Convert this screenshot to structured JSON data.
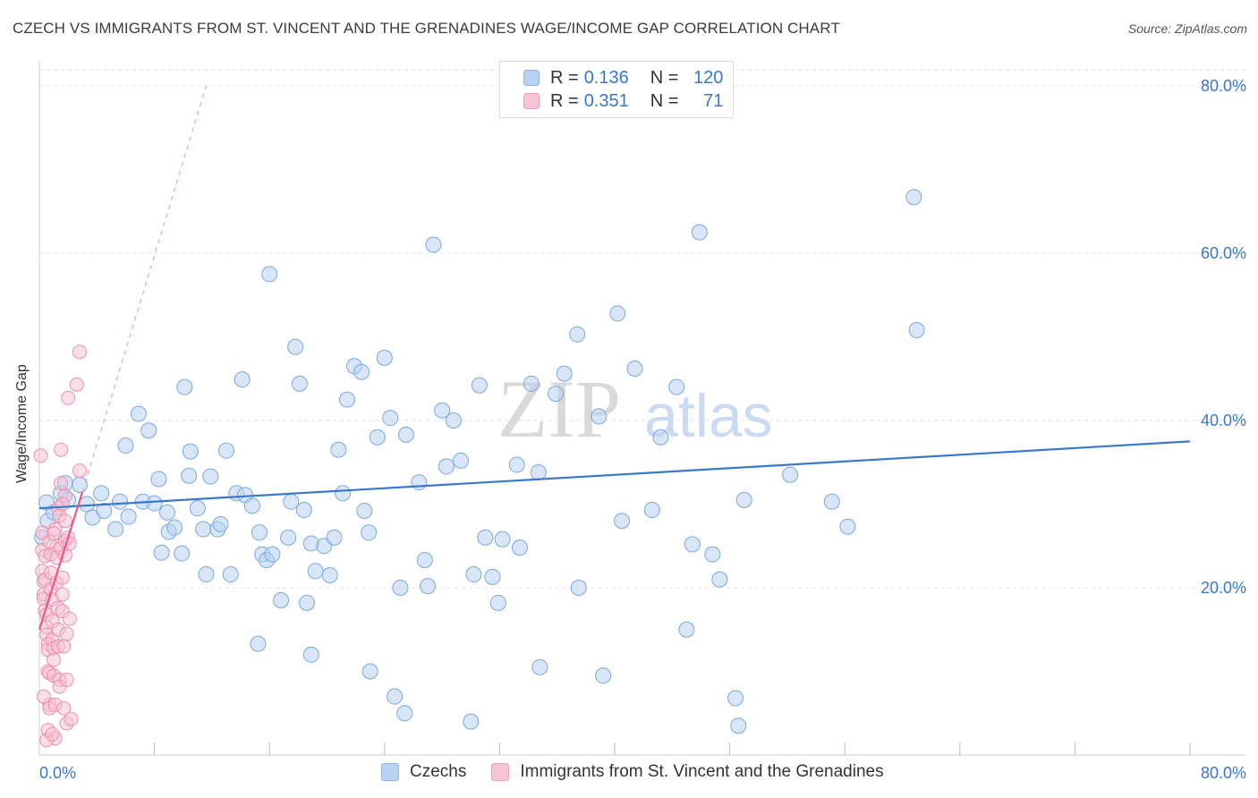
{
  "title": "CZECH VS IMMIGRANTS FROM ST. VINCENT AND THE GRENADINES WAGE/INCOME GAP CORRELATION CHART",
  "source": "Source: ZipAtlas.com",
  "watermark": "ZIPatlas",
  "legend": {
    "rows": [
      {
        "r_label": "R =",
        "r_value": "0.136",
        "n_label": "N =",
        "n_value": "120",
        "color": "#9cc2ee"
      },
      {
        "r_label": "R =",
        "r_value": "0.351",
        "n_label": "N =",
        "n_value": "71",
        "color": "#f4a9c0"
      }
    ]
  },
  "bottom_legend": [
    {
      "label": "Czechs",
      "color": "#9cc2ee"
    },
    {
      "label": "Immigrants from St. Vincent and the Grenadines",
      "color": "#f4a9c0"
    }
  ],
  "colors": {
    "blue": "#3a78c9",
    "blue_fill": "#b8d2f2",
    "pink": "#e8588a",
    "pink_fill": "#f7bfd0",
    "grid": "#e3e3e3",
    "axis_text": "#3a78c9"
  },
  "chart_data": {
    "type": "scatter",
    "title": "CZECH VS IMMIGRANTS FROM ST. VINCENT AND THE GRENADINES WAGE/INCOME GAP CORRELATION CHART",
    "xlabel": "",
    "ylabel": "Wage/Income Gap",
    "xlim": [
      0,
      80
    ],
    "ylim": [
      0,
      80
    ],
    "x_tick_labels": [
      "0.0%",
      "80.0%"
    ],
    "y_ticks": [
      20,
      40,
      60,
      80
    ],
    "y_tick_labels": [
      "20.0%",
      "40.0%",
      "60.0%",
      "80.0%"
    ],
    "grid": true,
    "series": [
      {
        "name": "Czechs",
        "color": "#9cc2ee",
        "trend": {
          "x": [
            0,
            80
          ],
          "y": [
            29.5,
            37.5
          ]
        },
        "points": [
          [
            0.2,
            26.0
          ],
          [
            0.5,
            30.2
          ],
          [
            0.6,
            28.0
          ],
          [
            1.0,
            29.0
          ],
          [
            1.5,
            31.3
          ],
          [
            1.8,
            32.5
          ],
          [
            2.0,
            30.5
          ],
          [
            2.8,
            32.3
          ],
          [
            3.3,
            30.0
          ],
          [
            3.7,
            28.4
          ],
          [
            4.3,
            31.3
          ],
          [
            4.5,
            29.2
          ],
          [
            5.6,
            30.3
          ],
          [
            5.3,
            27.0
          ],
          [
            6.0,
            37.0
          ],
          [
            6.2,
            28.5
          ],
          [
            6.9,
            40.8
          ],
          [
            7.2,
            30.3
          ],
          [
            7.6,
            38.8
          ],
          [
            8.0,
            30.1
          ],
          [
            8.3,
            33.0
          ],
          [
            8.5,
            24.2
          ],
          [
            8.9,
            29.0
          ],
          [
            9.0,
            26.7
          ],
          [
            9.4,
            27.2
          ],
          [
            9.9,
            24.1
          ],
          [
            10.1,
            44.0
          ],
          [
            10.4,
            33.4
          ],
          [
            10.5,
            36.3
          ],
          [
            11.0,
            29.5
          ],
          [
            11.4,
            27.0
          ],
          [
            11.6,
            21.6
          ],
          [
            11.9,
            33.3
          ],
          [
            12.4,
            27.0
          ],
          [
            12.6,
            27.6
          ],
          [
            13.0,
            36.4
          ],
          [
            13.3,
            21.6
          ],
          [
            13.7,
            31.3
          ],
          [
            14.1,
            44.9
          ],
          [
            14.3,
            31.1
          ],
          [
            14.8,
            29.8
          ],
          [
            15.3,
            26.6
          ],
          [
            15.5,
            24.0
          ],
          [
            15.8,
            23.3
          ],
          [
            16.2,
            24.0
          ],
          [
            16.0,
            57.5
          ],
          [
            16.8,
            18.5
          ],
          [
            17.3,
            26.0
          ],
          [
            17.5,
            30.3
          ],
          [
            17.8,
            48.8
          ],
          [
            18.1,
            44.4
          ],
          [
            18.4,
            29.3
          ],
          [
            18.6,
            18.2
          ],
          [
            18.9,
            25.3
          ],
          [
            19.2,
            22.0
          ],
          [
            19.8,
            25.0
          ],
          [
            20.2,
            21.5
          ],
          [
            20.5,
            26.0
          ],
          [
            20.8,
            36.5
          ],
          [
            21.1,
            31.3
          ],
          [
            21.4,
            42.5
          ],
          [
            21.9,
            46.5
          ],
          [
            22.4,
            45.8
          ],
          [
            22.6,
            29.2
          ],
          [
            22.9,
            26.6
          ],
          [
            23.5,
            38.0
          ],
          [
            24.0,
            47.5
          ],
          [
            24.4,
            40.3
          ],
          [
            25.1,
            20.0
          ],
          [
            25.5,
            38.3
          ],
          [
            26.4,
            32.6
          ],
          [
            26.8,
            23.3
          ],
          [
            27.0,
            20.2
          ],
          [
            27.4,
            61.0
          ],
          [
            28.0,
            41.2
          ],
          [
            28.3,
            34.5
          ],
          [
            28.8,
            40.0
          ],
          [
            29.3,
            35.2
          ],
          [
            30.2,
            21.6
          ],
          [
            30.6,
            44.2
          ],
          [
            31.0,
            26.0
          ],
          [
            31.5,
            21.3
          ],
          [
            31.9,
            18.2
          ],
          [
            33.2,
            34.7
          ],
          [
            34.2,
            44.4
          ],
          [
            34.7,
            33.8
          ],
          [
            33.4,
            24.8
          ],
          [
            34.8,
            10.5
          ],
          [
            35.9,
            43.2
          ],
          [
            36.5,
            45.6
          ],
          [
            37.4,
            50.3
          ],
          [
            38.9,
            40.5
          ],
          [
            39.2,
            9.5
          ],
          [
            40.2,
            52.8
          ],
          [
            40.5,
            28.0
          ],
          [
            41.4,
            46.2
          ],
          [
            42.6,
            29.3
          ],
          [
            43.2,
            38.0
          ],
          [
            44.3,
            44.0
          ],
          [
            45.4,
            25.2
          ],
          [
            45.9,
            62.5
          ],
          [
            46.8,
            24.0
          ],
          [
            47.3,
            21.0
          ],
          [
            49.0,
            30.5
          ],
          [
            52.2,
            33.5
          ],
          [
            55.1,
            30.3
          ],
          [
            56.2,
            27.3
          ],
          [
            60.8,
            66.7
          ],
          [
            61.0,
            50.8
          ],
          [
            18.9,
            12.0
          ],
          [
            15.2,
            13.3
          ],
          [
            24.7,
            7.0
          ],
          [
            48.4,
            6.8
          ],
          [
            48.6,
            3.5
          ],
          [
            23.0,
            10.0
          ],
          [
            25.4,
            5.0
          ],
          [
            30.0,
            4.0
          ],
          [
            45.0,
            15.0
          ],
          [
            37.5,
            20.0
          ],
          [
            32.2,
            25.8
          ]
        ]
      },
      {
        "name": "Immigrants from St. Vincent and the Grenadines",
        "color": "#f4a9c0",
        "trend": {
          "x": [
            0,
            3.0
          ],
          "y": [
            15.0,
            31.5
          ]
        },
        "trend_extended": {
          "x": [
            3.0,
            11.6
          ],
          "y": [
            31.5,
            80.0
          ]
        },
        "points": [
          [
            0.1,
            35.8
          ],
          [
            0.2,
            24.5
          ],
          [
            0.2,
            22.0
          ],
          [
            0.3,
            20.8
          ],
          [
            0.3,
            19.2
          ],
          [
            0.3,
            18.7
          ],
          [
            0.4,
            23.8
          ],
          [
            0.4,
            21.0
          ],
          [
            0.4,
            17.3
          ],
          [
            0.5,
            16.8
          ],
          [
            0.5,
            15.3
          ],
          [
            0.5,
            14.4
          ],
          [
            0.6,
            13.3
          ],
          [
            0.6,
            12.6
          ],
          [
            0.6,
            10.0
          ],
          [
            0.7,
            9.8
          ],
          [
            0.7,
            6.0
          ],
          [
            0.7,
            5.6
          ],
          [
            0.8,
            24.0
          ],
          [
            0.8,
            21.8
          ],
          [
            0.8,
            19.8
          ],
          [
            0.9,
            18.6
          ],
          [
            0.9,
            16.0
          ],
          [
            0.9,
            13.8
          ],
          [
            1.0,
            12.8
          ],
          [
            1.0,
            11.4
          ],
          [
            1.0,
            9.5
          ],
          [
            1.1,
            6.0
          ],
          [
            1.1,
            2.0
          ],
          [
            1.2,
            25.0
          ],
          [
            1.2,
            23.6
          ],
          [
            1.2,
            20.6
          ],
          [
            1.3,
            17.6
          ],
          [
            1.3,
            15.0
          ],
          [
            1.3,
            13.0
          ],
          [
            1.4,
            9.0
          ],
          [
            1.4,
            8.2
          ],
          [
            1.5,
            36.5
          ],
          [
            1.5,
            32.5
          ],
          [
            1.5,
            24.7
          ],
          [
            1.6,
            21.2
          ],
          [
            1.6,
            19.2
          ],
          [
            1.6,
            17.2
          ],
          [
            1.7,
            13.0
          ],
          [
            1.7,
            5.6
          ],
          [
            1.8,
            31.0
          ],
          [
            1.8,
            25.6
          ],
          [
            1.8,
            23.9
          ],
          [
            1.9,
            14.5
          ],
          [
            1.9,
            9.0
          ],
          [
            1.9,
            3.8
          ],
          [
            2.0,
            42.7
          ],
          [
            2.0,
            26.0
          ],
          [
            2.1,
            25.3
          ],
          [
            2.1,
            16.3
          ],
          [
            2.2,
            4.3
          ],
          [
            2.6,
            44.3
          ],
          [
            2.8,
            34.0
          ],
          [
            2.8,
            48.2
          ],
          [
            0.2,
            26.6
          ],
          [
            0.3,
            7.0
          ],
          [
            0.5,
            1.8
          ],
          [
            0.6,
            3.0
          ],
          [
            0.9,
            2.5
          ],
          [
            1.1,
            27.0
          ],
          [
            1.3,
            29.5
          ],
          [
            1.4,
            28.6
          ],
          [
            1.6,
            30.0
          ],
          [
            1.8,
            28.0
          ],
          [
            0.7,
            25.5
          ],
          [
            1.0,
            26.5
          ]
        ]
      }
    ]
  }
}
